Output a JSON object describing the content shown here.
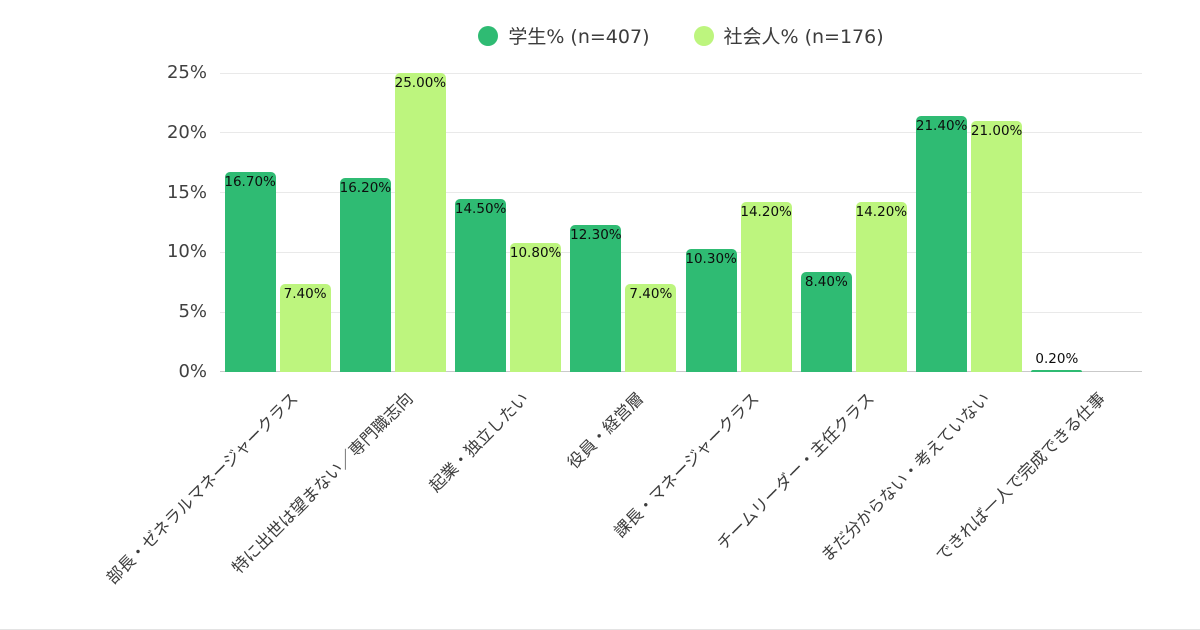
{
  "legend": {
    "entries": [
      {
        "label": "学生% (n=407)",
        "color": "#2FBB73"
      },
      {
        "label": "社会人% (n=176)",
        "color": "#BDF57E"
      }
    ]
  },
  "chart_data": {
    "type": "bar",
    "title": "",
    "xlabel": "",
    "ylabel": "",
    "ylim": [
      0,
      25
    ],
    "yticks": [
      "0%",
      "5%",
      "10%",
      "15%",
      "20%",
      "25%"
    ],
    "grid": true,
    "legend_position": "top",
    "categories": [
      "部長・ゼネラルマネージャークラス",
      "特に出世は望まない／専門職志向",
      "起業・独立したい",
      "役員・経営層",
      "課長・マネージャークラス",
      "チームリーダー・主任クラス",
      "まだ分からない・考えていない",
      "できれば一人で完成できる仕事"
    ],
    "series": [
      {
        "name": "学生% (n=407)",
        "color": "#2FBB73",
        "values": [
          16.7,
          16.2,
          14.5,
          12.3,
          10.3,
          8.4,
          21.4,
          0.2
        ],
        "value_labels": [
          "16.70%",
          "16.20%",
          "14.50%",
          "12.30%",
          "10.30%",
          "8.40%",
          "21.40%",
          "0.20%"
        ]
      },
      {
        "name": "社会人% (n=176)",
        "color": "#BDF57E",
        "values": [
          7.4,
          25.0,
          10.8,
          7.4,
          14.2,
          14.2,
          21.0,
          0
        ],
        "value_labels": [
          "7.40%",
          "25.00%",
          "10.80%",
          "7.40%",
          "14.20%",
          "14.20%",
          "21.00%",
          ""
        ]
      }
    ],
    "colors": {
      "gridline": "#e9e9e9",
      "baseline": "#c9c9c9",
      "value_text": "#0d0d0d"
    }
  }
}
